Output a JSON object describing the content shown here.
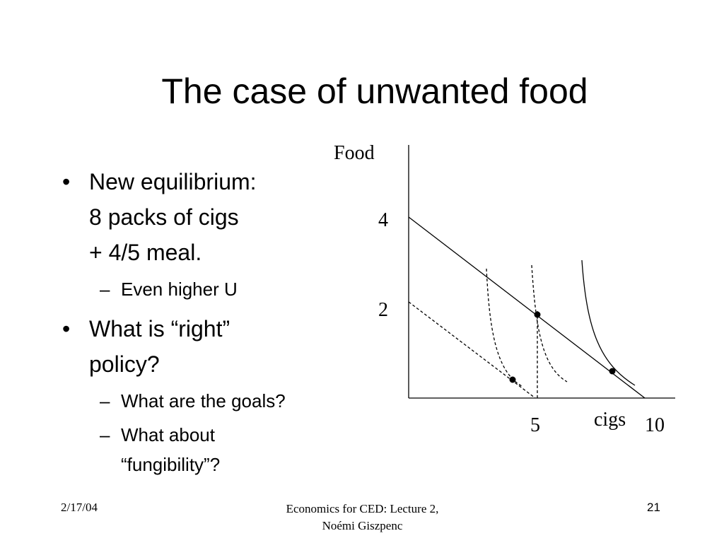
{
  "title": "The case of unwanted food",
  "bullets": [
    {
      "lines": [
        "New equilibrium:",
        "8 packs of cigs",
        "+ 4/5 meal."
      ],
      "sub": [
        {
          "lines": [
            "Even higher U"
          ]
        }
      ]
    },
    {
      "lines": [
        "What is “right”",
        "policy?"
      ],
      "sub": [
        {
          "lines": [
            "What are the goals?"
          ]
        },
        {
          "lines": [
            "What about",
            "“fungibility”?"
          ]
        }
      ]
    }
  ],
  "diagram": {
    "y_axis_label": "Food",
    "x_axis_label": "cigs",
    "y_labels": [
      "4",
      "2"
    ],
    "x_labels": [
      "5",
      "10"
    ]
  },
  "footer": {
    "date": "2/17/04",
    "center": [
      "Economics for CED: Lecture 2,",
      "Noémi Giszpenc"
    ],
    "page": "21"
  }
}
